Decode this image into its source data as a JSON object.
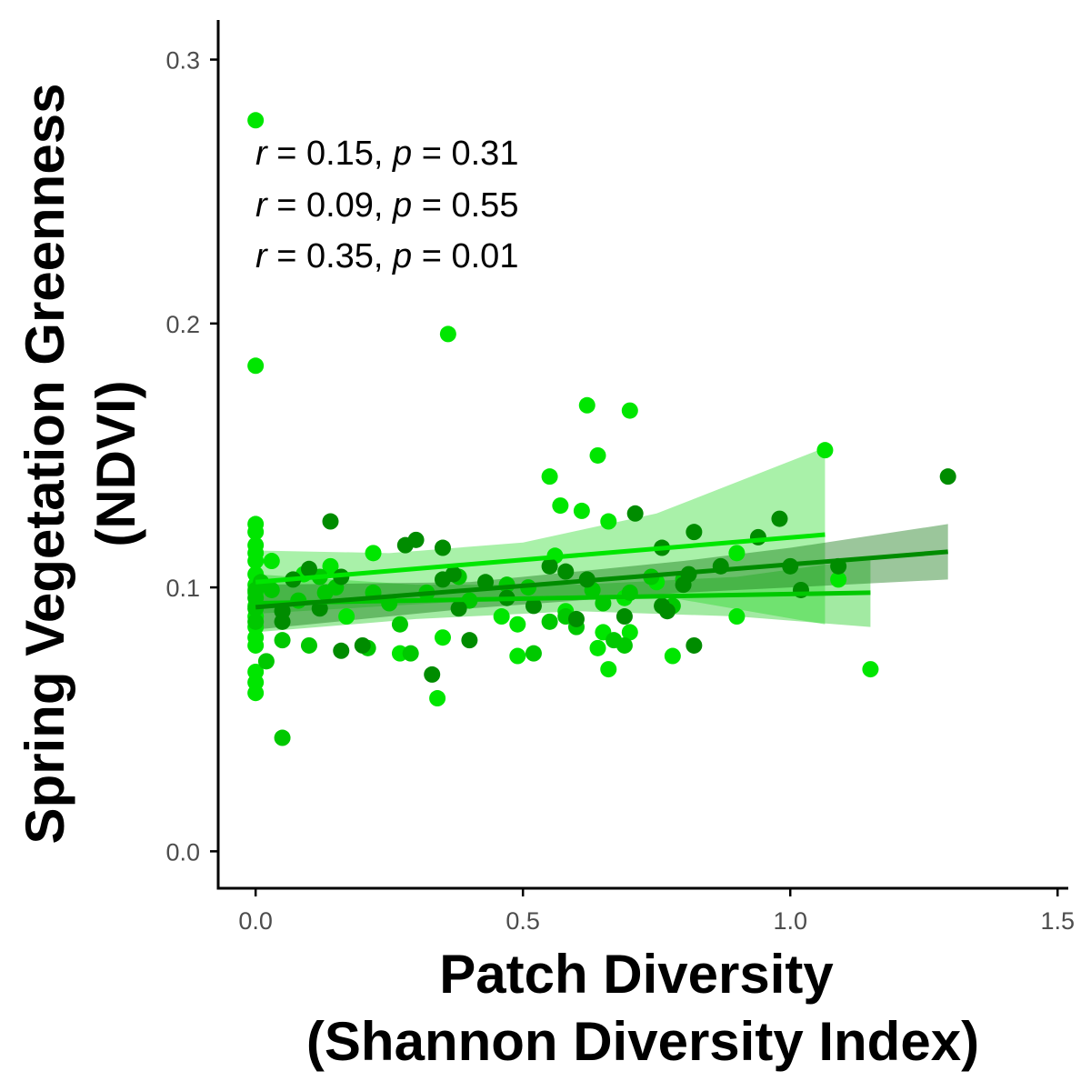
{
  "chart_data": {
    "type": "scatter",
    "title": "",
    "xlabel_lines": [
      "Patch Diversity",
      "(Shannon Diversity Index)"
    ],
    "ylabel_lines": [
      "Spring Vegetation Greenness",
      "(NDVI)"
    ],
    "xlim": [
      -0.07,
      1.52
    ],
    "ylim": [
      -0.014,
      0.315
    ],
    "x_ticks": [
      0.0,
      0.5,
      1.0,
      1.5
    ],
    "x_tick_labels": [
      "0.0",
      "0.5",
      "1.0",
      "1.5"
    ],
    "y_ticks": [
      0.0,
      0.1,
      0.2,
      0.3
    ],
    "y_tick_labels": [
      "0.0",
      "0.1",
      "0.2",
      "0.3"
    ],
    "grid": false,
    "legend": "none",
    "annotations": [
      {
        "r_label": "r",
        "r_text": " = 0.15, ",
        "p_label": "p",
        "p_text": " = 0.31"
      },
      {
        "r_label": "r",
        "r_text": " = 0.09, ",
        "p_label": "p",
        "p_text": " = 0.55"
      },
      {
        "r_label": "r",
        "r_text": " = 0.35, ",
        "p_label": "p",
        "p_text": " = 0.01"
      }
    ],
    "series": [
      {
        "color": "#00e600",
        "band_color": "#33dd33",
        "fit": {
          "x0": 0.0,
          "y0": 0.102,
          "x1": 1.065,
          "y1": 0.12
        },
        "band": {
          "x": [
            0.0,
            0.25,
            0.5,
            0.75,
            1.065
          ],
          "upper": [
            0.114,
            0.113,
            0.117,
            0.128,
            0.153
          ],
          "lower": [
            0.09,
            0.093,
            0.096,
            0.097,
            0.086
          ]
        },
        "points": [
          [
            0.0,
            0.277
          ],
          [
            0.0,
            0.184
          ],
          [
            0.0,
            0.124
          ],
          [
            0.0,
            0.121
          ],
          [
            0.0,
            0.116
          ],
          [
            0.0,
            0.113
          ],
          [
            0.0,
            0.11
          ],
          [
            0.0,
            0.105
          ],
          [
            0.0,
            0.101
          ],
          [
            0.0,
            0.098
          ],
          [
            0.0,
            0.093
          ],
          [
            0.0,
            0.089
          ],
          [
            0.0,
            0.085
          ],
          [
            0.0,
            0.081
          ],
          [
            0.0,
            0.078
          ],
          [
            0.0,
            0.068
          ],
          [
            0.0,
            0.064
          ],
          [
            0.0,
            0.06
          ],
          [
            0.03,
            0.11
          ],
          [
            0.09,
            0.105
          ],
          [
            0.14,
            0.108
          ],
          [
            0.17,
            0.089
          ],
          [
            0.22,
            0.113
          ],
          [
            0.27,
            0.075
          ],
          [
            0.35,
            0.081
          ],
          [
            0.36,
            0.196
          ],
          [
            0.34,
            0.058
          ],
          [
            0.46,
            0.089
          ],
          [
            0.49,
            0.086
          ],
          [
            0.49,
            0.074
          ],
          [
            0.55,
            0.142
          ],
          [
            0.56,
            0.112
          ],
          [
            0.57,
            0.131
          ],
          [
            0.58,
            0.091
          ],
          [
            0.61,
            0.129
          ],
          [
            0.62,
            0.169
          ],
          [
            0.64,
            0.15
          ],
          [
            0.64,
            0.077
          ],
          [
            0.65,
            0.083
          ],
          [
            0.66,
            0.125
          ],
          [
            0.66,
            0.069
          ],
          [
            0.69,
            0.096
          ],
          [
            0.7,
            0.167
          ],
          [
            0.7,
            0.083
          ],
          [
            0.75,
            0.102
          ],
          [
            0.78,
            0.074
          ],
          [
            0.9,
            0.113
          ],
          [
            0.9,
            0.089
          ],
          [
            1.065,
            0.152
          ],
          [
            1.09,
            0.103
          ],
          [
            1.15,
            0.069
          ]
        ]
      },
      {
        "color": "#00c800",
        "band_color": "#22cc22",
        "fit": {
          "x0": 0.0,
          "y0": 0.094,
          "x1": 1.15,
          "y1": 0.098
        },
        "band": {
          "x": [
            0.0,
            0.3,
            0.6,
            0.9,
            1.15
          ],
          "upper": [
            0.105,
            0.101,
            0.101,
            0.104,
            0.111
          ],
          "lower": [
            0.083,
            0.088,
            0.091,
            0.089,
            0.085
          ]
        },
        "points": [
          [
            0.0,
            0.092
          ],
          [
            0.0,
            0.096
          ],
          [
            0.0,
            0.099
          ],
          [
            0.0,
            0.087
          ],
          [
            0.01,
            0.102
          ],
          [
            0.02,
            0.072
          ],
          [
            0.03,
            0.099
          ],
          [
            0.05,
            0.091
          ],
          [
            0.05,
            0.08
          ],
          [
            0.05,
            0.043
          ],
          [
            0.08,
            0.095
          ],
          [
            0.1,
            0.078
          ],
          [
            0.12,
            0.104
          ],
          [
            0.13,
            0.098
          ],
          [
            0.15,
            0.1
          ],
          [
            0.21,
            0.077
          ],
          [
            0.22,
            0.098
          ],
          [
            0.25,
            0.094
          ],
          [
            0.27,
            0.086
          ],
          [
            0.29,
            0.075
          ],
          [
            0.32,
            0.098
          ],
          [
            0.38,
            0.104
          ],
          [
            0.4,
            0.095
          ],
          [
            0.47,
            0.101
          ],
          [
            0.51,
            0.1
          ],
          [
            0.52,
            0.075
          ],
          [
            0.55,
            0.087
          ],
          [
            0.58,
            0.089
          ],
          [
            0.6,
            0.085
          ],
          [
            0.63,
            0.099
          ],
          [
            0.65,
            0.094
          ],
          [
            0.67,
            0.08
          ],
          [
            0.69,
            0.078
          ],
          [
            0.7,
            0.098
          ],
          [
            0.74,
            0.104
          ],
          [
            0.78,
            0.093
          ],
          [
            0.8,
            0.103
          ]
        ]
      },
      {
        "color": "#008c00",
        "band_color": "#117711",
        "fit": {
          "x0": 0.0,
          "y0": 0.0925,
          "x1": 1.295,
          "y1": 0.1135
        },
        "band": {
          "x": [
            0.0,
            0.4,
            0.8,
            1.0,
            1.295
          ],
          "upper": [
            0.101,
            0.102,
            0.11,
            0.115,
            0.124
          ],
          "lower": [
            0.084,
            0.092,
            0.098,
            0.1,
            0.103
          ]
        },
        "points": [
          [
            0.05,
            0.087
          ],
          [
            0.05,
            0.091
          ],
          [
            0.07,
            0.103
          ],
          [
            0.1,
            0.107
          ],
          [
            0.12,
            0.092
          ],
          [
            0.14,
            0.125
          ],
          [
            0.16,
            0.104
          ],
          [
            0.16,
            0.076
          ],
          [
            0.2,
            0.078
          ],
          [
            0.28,
            0.116
          ],
          [
            0.3,
            0.118
          ],
          [
            0.33,
            0.067
          ],
          [
            0.35,
            0.103
          ],
          [
            0.35,
            0.115
          ],
          [
            0.37,
            0.105
          ],
          [
            0.38,
            0.092
          ],
          [
            0.4,
            0.08
          ],
          [
            0.43,
            0.102
          ],
          [
            0.47,
            0.096
          ],
          [
            0.52,
            0.093
          ],
          [
            0.55,
            0.108
          ],
          [
            0.58,
            0.106
          ],
          [
            0.6,
            0.088
          ],
          [
            0.62,
            0.103
          ],
          [
            0.69,
            0.089
          ],
          [
            0.71,
            0.128
          ],
          [
            0.76,
            0.115
          ],
          [
            0.76,
            0.093
          ],
          [
            0.77,
            0.091
          ],
          [
            0.8,
            0.101
          ],
          [
            0.81,
            0.105
          ],
          [
            0.82,
            0.121
          ],
          [
            0.82,
            0.078
          ],
          [
            0.87,
            0.108
          ],
          [
            0.94,
            0.119
          ],
          [
            0.98,
            0.126
          ],
          [
            1.0,
            0.108
          ],
          [
            1.02,
            0.099
          ],
          [
            1.09,
            0.108
          ],
          [
            1.295,
            0.142
          ]
        ]
      }
    ]
  }
}
